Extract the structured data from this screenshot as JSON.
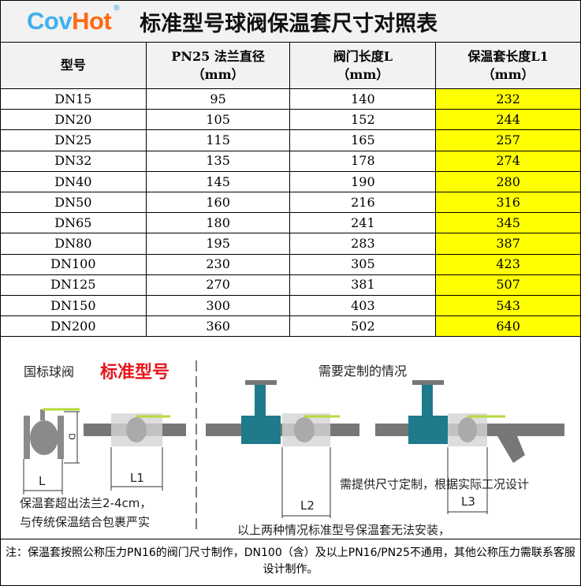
{
  "header": {
    "brand_cov": "Cov",
    "brand_hot": "Hot",
    "brand_reg": "®",
    "title": "标准型号球阀保温套尺寸对照表"
  },
  "table": {
    "columns": [
      {
        "line1": "型号",
        "line2": ""
      },
      {
        "line1": "PN25 法兰直径",
        "line2": "（mm）"
      },
      {
        "line1": "阀门长度L",
        "line2": "（mm）"
      },
      {
        "line1": "保温套长度L1",
        "line2": "（mm）"
      }
    ],
    "rows": [
      [
        "DN15",
        "95",
        "140",
        "232"
      ],
      [
        "DN20",
        "105",
        "152",
        "244"
      ],
      [
        "DN25",
        "115",
        "165",
        "257"
      ],
      [
        "DN32",
        "135",
        "178",
        "274"
      ],
      [
        "DN40",
        "145",
        "190",
        "280"
      ],
      [
        "DN50",
        "160",
        "216",
        "316"
      ],
      [
        "DN65",
        "180",
        "241",
        "345"
      ],
      [
        "DN80",
        "195",
        "283",
        "387"
      ],
      [
        "DN100",
        "230",
        "305",
        "423"
      ],
      [
        "DN125",
        "270",
        "381",
        "507"
      ],
      [
        "DN150",
        "300",
        "403",
        "543"
      ],
      [
        "DN200",
        "360",
        "502",
        "640"
      ]
    ],
    "highlight_color": "#ffff00"
  },
  "diagram": {
    "left_label": "国标球阀",
    "left_highlight": "标准型号",
    "right_label": "需要定制的情况",
    "dim_d": "D",
    "dim_L": "L",
    "dim_L1": "L1",
    "dim_L2": "L2",
    "dim_L3": "L3",
    "left_text1": "保温套超出法兰2-4cm，",
    "left_text2": "与传统保温结合包裹严实",
    "right_text1": "以上两种情况标准型号保温套无法安装，",
    "right_text2": "需提供尺寸定制，根据实际工况设计"
  },
  "note": "注：保温套按照公称压力PN16的阀门尺寸制作，DN100（含）及以上PN16/PN25不通用，其他公称压力需联系客服设计制作。"
}
